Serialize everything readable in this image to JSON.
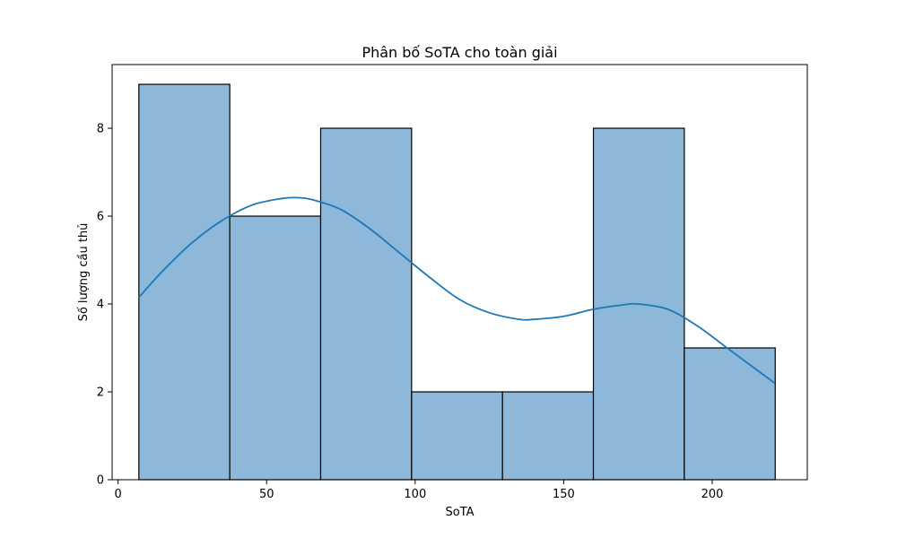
{
  "chart_data": {
    "type": "bar",
    "title": "Phân bố SoTA cho toàn giải",
    "xlabel": "SoTA",
    "ylabel": "Số lượng cầu thủ",
    "bins": [
      {
        "start": 7,
        "end": 37.6,
        "count": 9
      },
      {
        "start": 37.6,
        "end": 68.2,
        "count": 6
      },
      {
        "start": 68.2,
        "end": 98.8,
        "count": 8
      },
      {
        "start": 98.8,
        "end": 129.4,
        "count": 2
      },
      {
        "start": 129.4,
        "end": 160,
        "count": 2
      },
      {
        "start": 160,
        "end": 190.6,
        "count": 8
      },
      {
        "start": 190.6,
        "end": 221.2,
        "count": 3
      }
    ],
    "kde": {
      "x": [
        7,
        15,
        25,
        35,
        45,
        55,
        60,
        65,
        75,
        85,
        95,
        105,
        115,
        125,
        135,
        140,
        150,
        160,
        170,
        175,
        185,
        195,
        205,
        215,
        221
      ],
      "y": [
        4.15,
        4.75,
        5.4,
        5.9,
        6.25,
        6.4,
        6.42,
        6.38,
        6.15,
        5.7,
        5.15,
        4.6,
        4.1,
        3.8,
        3.65,
        3.65,
        3.72,
        3.88,
        3.98,
        4.0,
        3.88,
        3.5,
        3.0,
        2.5,
        2.2
      ]
    },
    "xlim": [
      -2,
      232
    ],
    "ylim": [
      0,
      9.45
    ],
    "xticks": [
      0,
      50,
      100,
      150,
      200
    ],
    "yticks": [
      0,
      2,
      4,
      6,
      8
    ],
    "grid": false,
    "colors": {
      "bar_fill": "#8db8d9",
      "bar_edge": "#000000",
      "kde_line": "#1f77b4"
    }
  }
}
